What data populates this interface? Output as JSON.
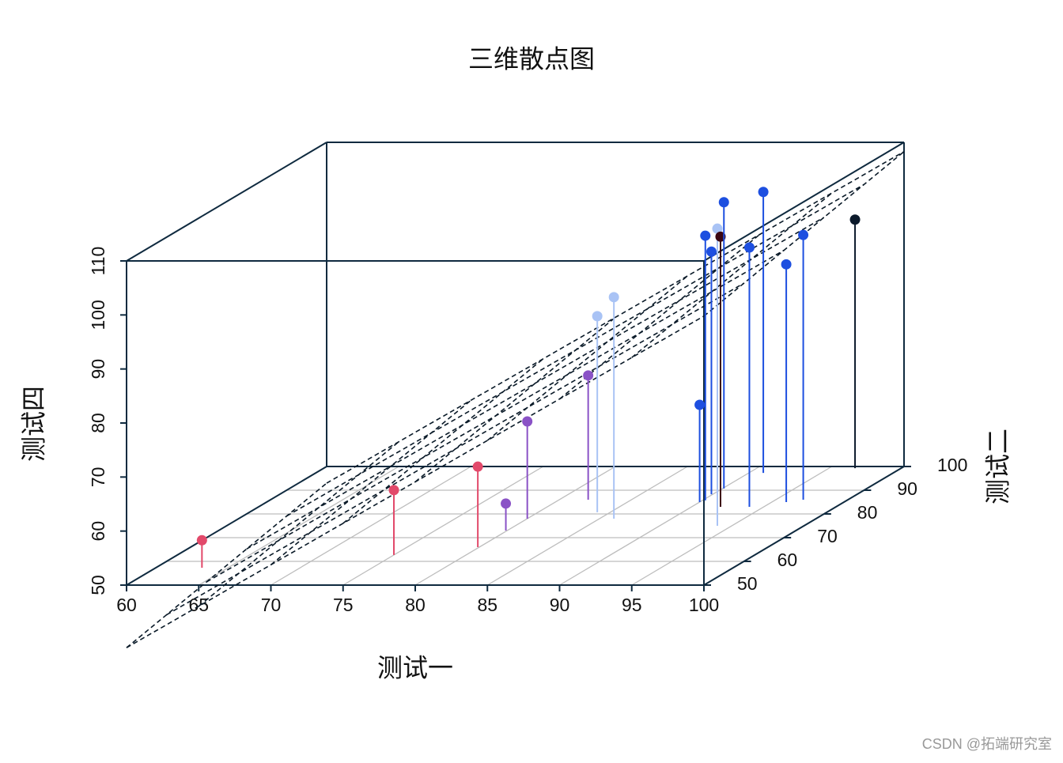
{
  "chart_data": {
    "type": "scatter3d",
    "title": "三维散点图",
    "xlabel": "测试一",
    "ylabel": "测试二",
    "zlabel": "测试四",
    "x": [
      63.2,
      75.0,
      79.9,
      79.9,
      80.0,
      82.0,
      84.1,
      86.0,
      90.0,
      90.2,
      89.9,
      94.0,
      92.0,
      90.1,
      94.0,
      91.0,
      96.0,
      96.9,
      96.8
    ],
    "y": [
      57.3,
      62.7,
      66.0,
      73.0,
      78.0,
      86.0,
      80.7,
      78.0,
      85.0,
      85.7,
      88.3,
      75.0,
      83.0,
      90.7,
      83.0,
      97.3,
      85.0,
      86.0,
      99.3
    ],
    "z": [
      55.1,
      62.0,
      64.9,
      55.0,
      68.0,
      73.0,
      86.3,
      91.0,
      68.0,
      99.0,
      94.9,
      105.0,
      100.0,
      103.0,
      98.0,
      102.0,
      94.0,
      99.0,
      96.0
    ],
    "point_colors": [
      "#e2496a",
      "#e2496a",
      "#e2496a",
      "#8a52c6",
      "#8a52c6",
      "#8a52c6",
      "#a9c3f5",
      "#a9c3f5",
      "#1d4fe0",
      "#1d4fe0",
      "#1d4fe0",
      "#a9c3f5",
      "#3b0712",
      "#1d4fe0",
      "#1d4fe0",
      "#1d4fe0",
      "#1d4fe0",
      "#1d4fe0",
      "#0c1a2b"
    ],
    "xlim": [
      60,
      100
    ],
    "xticks": [
      60,
      65,
      70,
      75,
      80,
      85,
      90,
      95,
      100
    ],
    "ylim": [
      50,
      100
    ],
    "yticks": [
      50,
      60,
      70,
      80,
      90,
      100
    ],
    "zlim": [
      50,
      110
    ],
    "zticks": [
      50,
      60,
      70,
      80,
      90,
      100,
      110
    ],
    "grid": true,
    "regression_plane": true,
    "box_color": "#0f2a3f",
    "grid_color": "#bdbdbd"
  },
  "watermark": "CSDN @拓端研究室"
}
